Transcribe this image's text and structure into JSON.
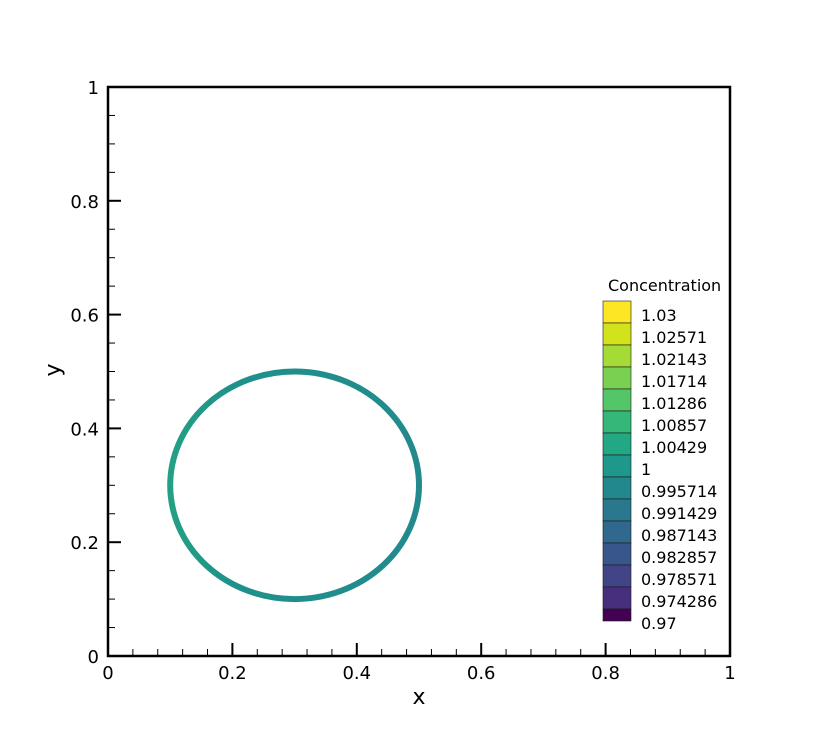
{
  "chart_data": {
    "type": "contour",
    "xlabel": "x",
    "ylabel": "y",
    "xlim": [
      0,
      1
    ],
    "ylim": [
      0,
      1
    ],
    "grid": false,
    "x_ticks": [
      0,
      0.2,
      0.4,
      0.6,
      0.8,
      1
    ],
    "x_tick_labels": [
      "0",
      "0.2",
      "0.4",
      "0.6",
      "0.8",
      "1"
    ],
    "y_ticks": [
      0,
      0.2,
      0.4,
      0.6,
      0.8,
      1
    ],
    "y_tick_labels": [
      "0",
      "0.2",
      "0.4",
      "0.6",
      "0.8",
      "1"
    ],
    "shape": {
      "kind": "ring",
      "center": [
        0.3,
        0.3
      ],
      "radius": 0.2,
      "value": 0.9995,
      "left_side_value": 1.004
    },
    "legend": {
      "title": "Concentration",
      "placement": "right",
      "levels": [
        {
          "label": "1.03",
          "value": 1.03,
          "color": "#fde725"
        },
        {
          "label": "1.02571",
          "value": 1.02571,
          "color": "#d2e21b"
        },
        {
          "label": "1.02143",
          "value": 1.02143,
          "color": "#a5db36"
        },
        {
          "label": "1.01714",
          "value": 1.01714,
          "color": "#7ad151"
        },
        {
          "label": "1.01286",
          "value": 1.01286,
          "color": "#54c568"
        },
        {
          "label": "1.00857",
          "value": 1.00857,
          "color": "#35b779"
        },
        {
          "label": "1.00429",
          "value": 1.00429,
          "color": "#22a884"
        },
        {
          "label": "1",
          "value": 1,
          "color": "#1f988b"
        },
        {
          "label": "0.995714",
          "value": 0.995714,
          "color": "#23888e"
        },
        {
          "label": "0.991429",
          "value": 0.991429,
          "color": "#2a788e"
        },
        {
          "label": "0.987143",
          "value": 0.987143,
          "color": "#31688e"
        },
        {
          "label": "0.982857",
          "value": 0.982857,
          "color": "#39568c"
        },
        {
          "label": "0.978571",
          "value": 0.978571,
          "color": "#414487"
        },
        {
          "label": "0.974286",
          "value": 0.974286,
          "color": "#472f7d"
        },
        {
          "label": "0.97",
          "value": 0.97,
          "color": "#440154"
        }
      ]
    }
  }
}
